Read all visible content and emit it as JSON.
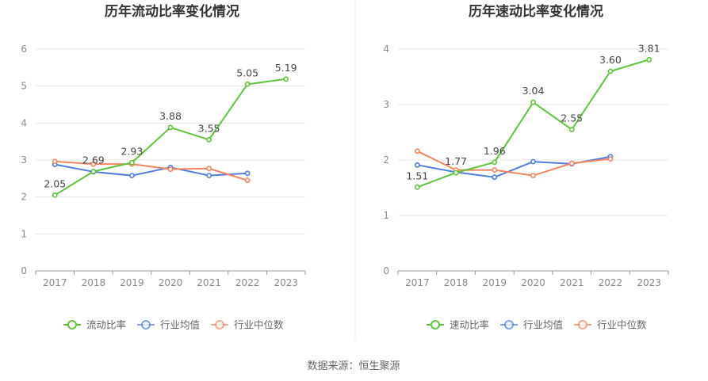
{
  "chart_data": [
    {
      "type": "line",
      "title": "历年流动比率变化情况",
      "categories": [
        "2017",
        "2018",
        "2019",
        "2020",
        "2021",
        "2022",
        "2023"
      ],
      "ylim": [
        0,
        6
      ],
      "yticks": [
        0,
        1,
        2,
        3,
        4,
        5,
        6
      ],
      "grid": true,
      "legend_position": "bottom",
      "series": [
        {
          "name": "流动比率",
          "color": "#5ec53a",
          "values": [
            2.05,
            2.69,
            2.93,
            3.88,
            3.55,
            5.05,
            5.19
          ],
          "labels": [
            "2.05",
            "2.69",
            "2.93",
            "3.88",
            "3.55",
            "5.05",
            "5.19"
          ]
        },
        {
          "name": "行业均值",
          "color": "#4f7ee0",
          "values": [
            2.88,
            2.68,
            2.58,
            2.8,
            2.58,
            2.64,
            null
          ]
        },
        {
          "name": "行业中位数",
          "color": "#f3855e",
          "values": [
            2.96,
            2.89,
            2.89,
            2.75,
            2.77,
            2.45,
            null
          ]
        }
      ]
    },
    {
      "type": "line",
      "title": "历年速动比率变化情况",
      "categories": [
        "2017",
        "2018",
        "2019",
        "2020",
        "2021",
        "2022",
        "2023"
      ],
      "ylim": [
        0,
        4
      ],
      "yticks": [
        0,
        1,
        2,
        3,
        4
      ],
      "grid": true,
      "legend_position": "bottom",
      "series": [
        {
          "name": "速动比率",
          "color": "#5ec53a",
          "values": [
            1.51,
            1.77,
            1.96,
            3.04,
            2.55,
            3.6,
            3.81
          ],
          "labels": [
            "1.51",
            "1.77",
            "1.96",
            "3.04",
            "2.55",
            "3.60",
            "3.81"
          ]
        },
        {
          "name": "行业均值",
          "color": "#4f7ee0",
          "values": [
            1.91,
            1.78,
            1.69,
            1.97,
            1.93,
            2.06,
            null
          ]
        },
        {
          "name": "行业中位数",
          "color": "#f3855e",
          "values": [
            2.16,
            1.82,
            1.82,
            1.72,
            1.94,
            2.02,
            null
          ]
        }
      ]
    }
  ],
  "footer": {
    "source": "数据来源：恒生聚源"
  }
}
